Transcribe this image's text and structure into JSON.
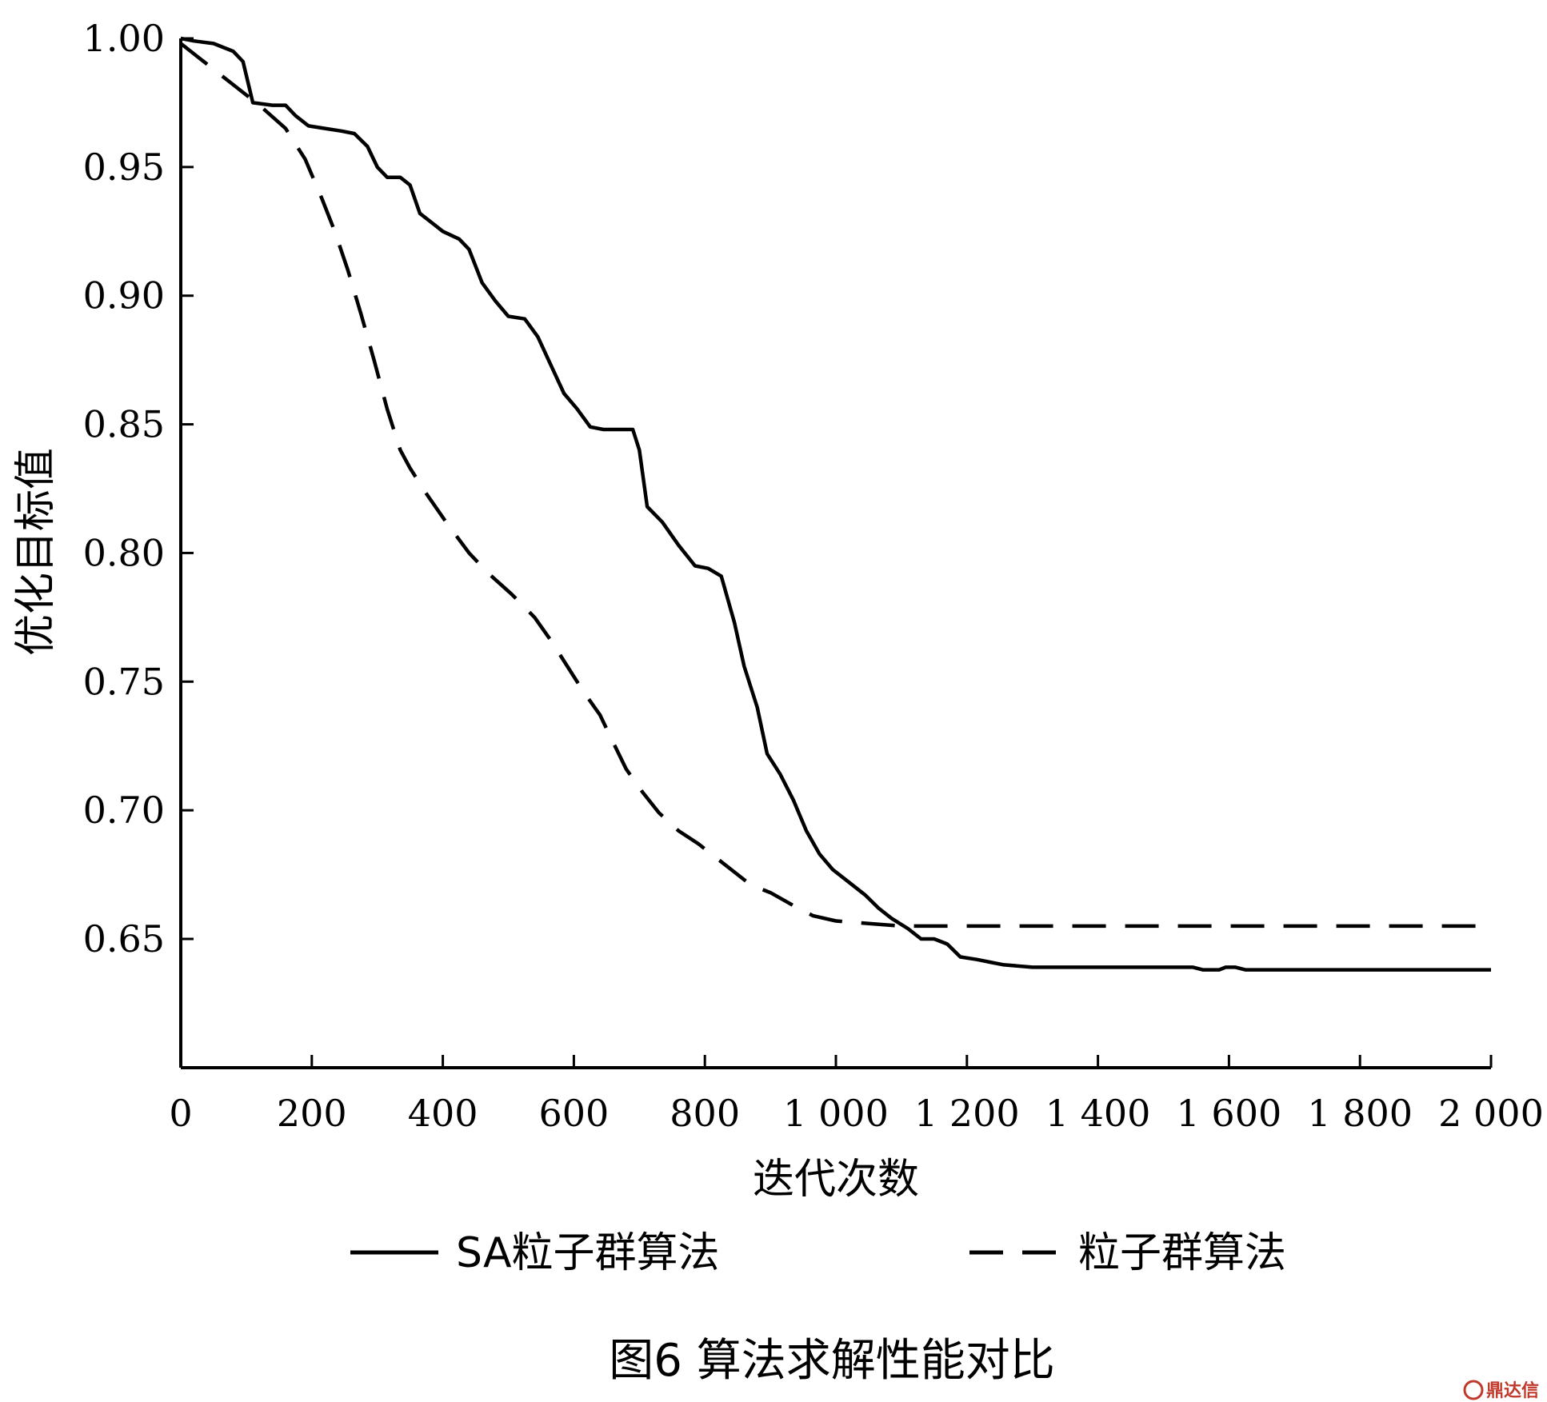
{
  "chart_data": {
    "type": "line",
    "title": "",
    "xlabel": "迭代次数",
    "ylabel": "优化目标值",
    "xlim": [
      0,
      2000
    ],
    "ylim": [
      0.61,
      1.0
    ],
    "x_ticks": [
      0,
      200,
      400,
      600,
      800,
      1000,
      1200,
      1400,
      1600,
      1800,
      2000
    ],
    "x_tick_labels": [
      "0",
      "200",
      "400",
      "600",
      "800",
      "1 000",
      "1 200",
      "1 400",
      "1 600",
      "1 800",
      "2 000"
    ],
    "y_ticks": [
      0.65,
      0.7,
      0.75,
      0.8,
      0.85,
      0.9,
      0.95,
      1.0
    ],
    "y_tick_labels": [
      "0.65",
      "0.70",
      "0.75",
      "0.80",
      "0.85",
      "0.90",
      "0.95",
      "1.00"
    ],
    "grid": false,
    "legend_position": "bottom",
    "series": [
      {
        "name": "SA粒子群算法",
        "style": "solid",
        "color": "#000000",
        "points": [
          [
            0,
            1.0
          ],
          [
            20,
            0.999
          ],
          [
            50,
            0.998
          ],
          [
            80,
            0.995
          ],
          [
            95,
            0.991
          ],
          [
            110,
            0.975
          ],
          [
            140,
            0.974
          ],
          [
            160,
            0.974
          ],
          [
            175,
            0.97
          ],
          [
            195,
            0.966
          ],
          [
            220,
            0.965
          ],
          [
            245,
            0.964
          ],
          [
            265,
            0.963
          ],
          [
            285,
            0.958
          ],
          [
            300,
            0.95
          ],
          [
            315,
            0.946
          ],
          [
            335,
            0.946
          ],
          [
            350,
            0.943
          ],
          [
            365,
            0.932
          ],
          [
            385,
            0.928
          ],
          [
            400,
            0.925
          ],
          [
            425,
            0.922
          ],
          [
            440,
            0.918
          ],
          [
            460,
            0.905
          ],
          [
            480,
            0.898
          ],
          [
            500,
            0.892
          ],
          [
            525,
            0.891
          ],
          [
            545,
            0.884
          ],
          [
            565,
            0.873
          ],
          [
            585,
            0.862
          ],
          [
            605,
            0.856
          ],
          [
            625,
            0.849
          ],
          [
            645,
            0.848
          ],
          [
            690,
            0.848
          ],
          [
            700,
            0.84
          ],
          [
            712,
            0.818
          ],
          [
            735,
            0.812
          ],
          [
            760,
            0.803
          ],
          [
            785,
            0.795
          ],
          [
            805,
            0.794
          ],
          [
            825,
            0.791
          ],
          [
            845,
            0.773
          ],
          [
            860,
            0.756
          ],
          [
            880,
            0.74
          ],
          [
            895,
            0.722
          ],
          [
            915,
            0.714
          ],
          [
            935,
            0.704
          ],
          [
            955,
            0.692
          ],
          [
            975,
            0.683
          ],
          [
            995,
            0.677
          ],
          [
            1020,
            0.672
          ],
          [
            1045,
            0.667
          ],
          [
            1065,
            0.662
          ],
          [
            1085,
            0.658
          ],
          [
            1110,
            0.654
          ],
          [
            1130,
            0.65
          ],
          [
            1150,
            0.65
          ],
          [
            1170,
            0.648
          ],
          [
            1190,
            0.643
          ],
          [
            1215,
            0.642
          ],
          [
            1235,
            0.641
          ],
          [
            1255,
            0.64
          ],
          [
            1300,
            0.639
          ],
          [
            1400,
            0.639
          ],
          [
            1500,
            0.639
          ],
          [
            1545,
            0.639
          ],
          [
            1560,
            0.638
          ],
          [
            1585,
            0.638
          ],
          [
            1595,
            0.639
          ],
          [
            1610,
            0.639
          ],
          [
            1625,
            0.638
          ],
          [
            1700,
            0.638
          ],
          [
            1800,
            0.638
          ],
          [
            1900,
            0.638
          ],
          [
            2000,
            0.638
          ]
        ]
      },
      {
        "name": "粒子群算法",
        "style": "dashed",
        "color": "#000000",
        "points": [
          [
            0,
            0.998
          ],
          [
            40,
            0.99
          ],
          [
            80,
            0.982
          ],
          [
            120,
            0.974
          ],
          [
            160,
            0.965
          ],
          [
            190,
            0.953
          ],
          [
            215,
            0.938
          ],
          [
            235,
            0.925
          ],
          [
            255,
            0.91
          ],
          [
            275,
            0.893
          ],
          [
            295,
            0.875
          ],
          [
            315,
            0.856
          ],
          [
            335,
            0.84
          ],
          [
            350,
            0.833
          ],
          [
            375,
            0.823
          ],
          [
            405,
            0.812
          ],
          [
            440,
            0.8
          ],
          [
            470,
            0.792
          ],
          [
            505,
            0.784
          ],
          [
            540,
            0.775
          ],
          [
            565,
            0.766
          ],
          [
            590,
            0.756
          ],
          [
            615,
            0.746
          ],
          [
            640,
            0.737
          ],
          [
            655,
            0.729
          ],
          [
            680,
            0.716
          ],
          [
            705,
            0.707
          ],
          [
            730,
            0.699
          ],
          [
            760,
            0.692
          ],
          [
            790,
            0.687
          ],
          [
            820,
            0.681
          ],
          [
            845,
            0.676
          ],
          [
            870,
            0.671
          ],
          [
            900,
            0.668
          ],
          [
            935,
            0.663
          ],
          [
            965,
            0.659
          ],
          [
            1000,
            0.657
          ],
          [
            1050,
            0.656
          ],
          [
            1100,
            0.655
          ],
          [
            1200,
            0.655
          ],
          [
            1400,
            0.655
          ],
          [
            1600,
            0.655
          ],
          [
            1800,
            0.655
          ],
          [
            2000,
            0.655
          ]
        ]
      }
    ]
  },
  "caption": "图6 算法求解性能对比",
  "watermark": "鼎达信"
}
